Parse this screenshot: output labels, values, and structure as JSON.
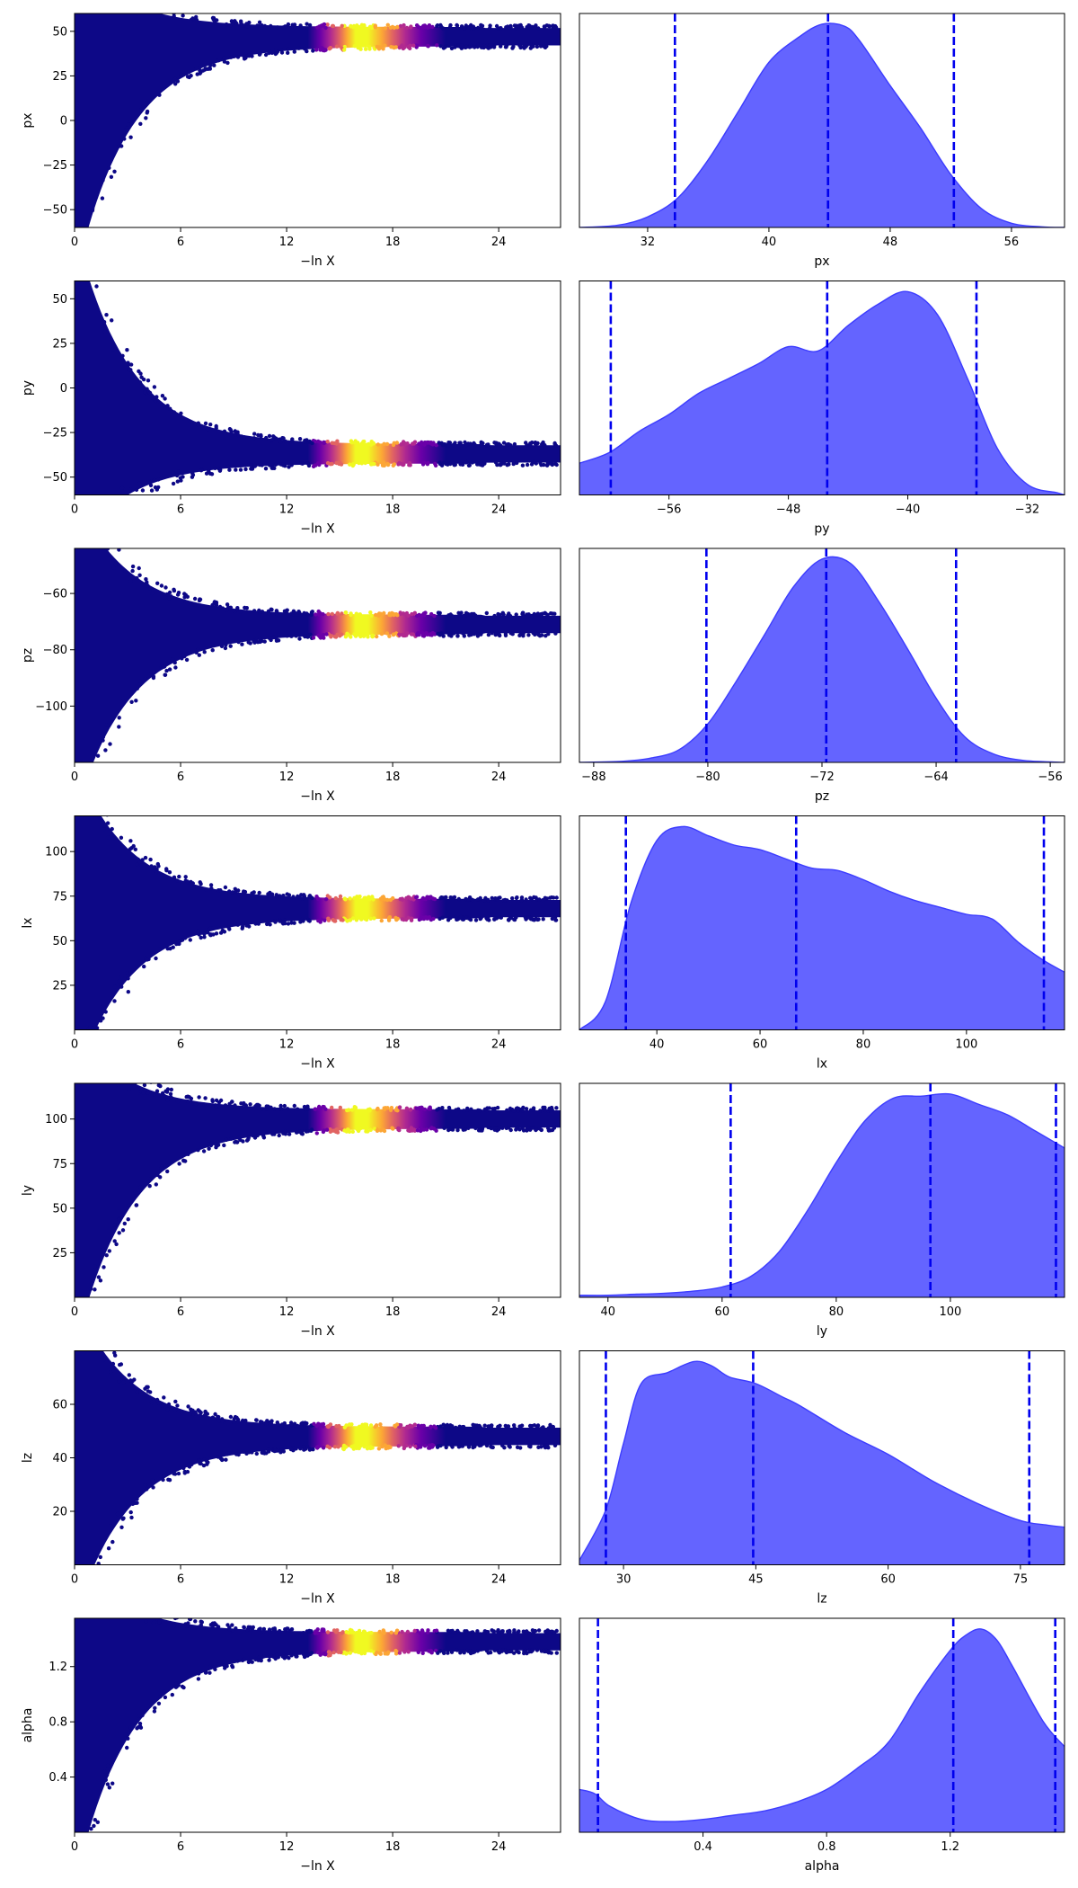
{
  "chart_data": {
    "type": "trace_plot_grid",
    "colors": {
      "kde_fill": "#6464ff",
      "kde_line": "#3c3cff",
      "quantile_line": "#0000ee",
      "colormap": [
        "#0d0887",
        "#6a00a8",
        "#b12a90",
        "#e16462",
        "#fca636",
        "#f0f921"
      ]
    },
    "trace_xlabel": "−ln X",
    "trace_xlim": [
      0,
      27.5
    ],
    "trace_xticks": [
      0,
      6,
      12,
      18,
      24
    ],
    "trace_xtick_labels": [
      "0",
      "6",
      "12",
      "18",
      "24"
    ],
    "rows": [
      {
        "param": "px",
        "trace_ylim": [
          -60,
          60
        ],
        "trace_yticks": [
          -50,
          -25,
          0,
          25,
          50
        ],
        "trace_ytick_labels": [
          "−50",
          "−25",
          "0",
          "25",
          "50"
        ],
        "trace_converged": 47,
        "trace_spread_start": 60,
        "trace_bulk_lower": -60,
        "kde_xlim": [
          27.5,
          59.5
        ],
        "kde_xticks": [
          32,
          40,
          48,
          56
        ],
        "kde_xtick_labels": [
          "32",
          "40",
          "48",
          "56"
        ],
        "kde_x": [
          27.5,
          30,
          32,
          34,
          36,
          38,
          40,
          42,
          43.5,
          45,
          46,
          48,
          50,
          52,
          54,
          56,
          58,
          59.5
        ],
        "kde_y": [
          0,
          0.01,
          0.05,
          0.14,
          0.32,
          0.55,
          0.78,
          0.9,
          0.96,
          0.95,
          0.88,
          0.67,
          0.47,
          0.25,
          0.09,
          0.02,
          0.003,
          0
        ],
        "quantiles": [
          33.8,
          43.9,
          52.2
        ]
      },
      {
        "param": "py",
        "trace_ylim": [
          -60,
          60
        ],
        "trace_yticks": [
          -50,
          -25,
          0,
          25,
          50
        ],
        "trace_ytick_labels": [
          "−50",
          "−25",
          "0",
          "25",
          "50"
        ],
        "trace_converged": -37,
        "trace_spread_start": 60,
        "trace_bulk_lower": -60,
        "kde_xlim": [
          -62,
          -29.5
        ],
        "kde_xticks": [
          -56,
          -48,
          -40,
          -32
        ],
        "kde_xtick_labels": [
          "−56",
          "−48",
          "−40",
          "−32"
        ],
        "kde_x": [
          -62,
          -60,
          -58,
          -56,
          -54,
          -52,
          -50,
          -48,
          -46,
          -44,
          -42,
          -40,
          -38,
          -36,
          -34,
          -32,
          -30,
          -29.5
        ],
        "kde_y": [
          0.15,
          0.2,
          0.3,
          0.38,
          0.48,
          0.55,
          0.62,
          0.7,
          0.68,
          0.8,
          0.9,
          0.96,
          0.85,
          0.55,
          0.22,
          0.05,
          0.01,
          0
        ],
        "quantiles": [
          -59.9,
          -45.4,
          -35.4
        ]
      },
      {
        "param": "pz",
        "trace_ylim": [
          -120,
          -44
        ],
        "trace_yticks": [
          -100,
          -80,
          -60
        ],
        "trace_ytick_labels": [
          "−100",
          "−80",
          "−60"
        ],
        "trace_converged": -71,
        "trace_spread_start": -44,
        "trace_bulk_lower": -120,
        "kde_xlim": [
          -89,
          -55
        ],
        "kde_xticks": [
          -88,
          -80,
          -72,
          -64,
          -56
        ],
        "kde_xtick_labels": [
          "−88",
          "−80",
          "−72",
          "−64",
          "−56"
        ],
        "kde_x": [
          -89,
          -86,
          -84,
          -82,
          -80,
          -78,
          -76,
          -74,
          -72,
          -70,
          -68,
          -66,
          -64,
          -62,
          -60,
          -58,
          -56,
          -55
        ],
        "kde_y": [
          0,
          0.005,
          0.02,
          0.06,
          0.18,
          0.38,
          0.6,
          0.82,
          0.95,
          0.93,
          0.75,
          0.53,
          0.3,
          0.12,
          0.04,
          0.01,
          0.002,
          0
        ],
        "quantiles": [
          -80.1,
          -71.7,
          -62.6
        ]
      },
      {
        "param": "lx",
        "trace_ylim": [
          0,
          120
        ],
        "trace_yticks": [
          25,
          50,
          75,
          100
        ],
        "trace_ytick_labels": [
          "25",
          "50",
          "75",
          "100"
        ],
        "trace_converged": 68,
        "trace_spread_start": 0,
        "trace_bulk_lower": 0,
        "kde_xlim": [
          25,
          119
        ],
        "kde_xticks": [
          40,
          60,
          80,
          100
        ],
        "kde_xtick_labels": [
          "40",
          "60",
          "80",
          "100"
        ],
        "kde_x": [
          25,
          30,
          35,
          40,
          45,
          50,
          55,
          60,
          65,
          70,
          75,
          80,
          85,
          90,
          95,
          100,
          105,
          110,
          115,
          119
        ],
        "kde_y": [
          0,
          0.12,
          0.55,
          0.82,
          0.88,
          0.84,
          0.8,
          0.78,
          0.74,
          0.7,
          0.69,
          0.65,
          0.6,
          0.56,
          0.53,
          0.5,
          0.48,
          0.38,
          0.3,
          0.25
        ],
        "quantiles": [
          34,
          67,
          115
        ]
      },
      {
        "param": "ly",
        "trace_ylim": [
          0,
          120
        ],
        "trace_yticks": [
          25,
          50,
          75,
          100
        ],
        "trace_ytick_labels": [
          "25",
          "50",
          "75",
          "100"
        ],
        "trace_converged": 100,
        "trace_spread_start": 0,
        "trace_bulk_lower": 0,
        "kde_xlim": [
          35,
          120
        ],
        "kde_xticks": [
          40,
          60,
          80,
          100
        ],
        "kde_xtick_labels": [
          "40",
          "60",
          "80",
          "100"
        ],
        "kde_x": [
          35,
          40,
          45,
          50,
          55,
          60,
          65,
          70,
          75,
          80,
          85,
          90,
          95,
          100,
          105,
          110,
          115,
          120
        ],
        "kde_y": [
          0.01,
          0.01,
          0.015,
          0.02,
          0.03,
          0.05,
          0.1,
          0.22,
          0.42,
          0.65,
          0.85,
          0.96,
          0.97,
          0.98,
          0.93,
          0.88,
          0.8,
          0.72
        ],
        "quantiles": [
          61.5,
          96.5,
          118.5
        ]
      },
      {
        "param": "lz",
        "trace_ylim": [
          0,
          80
        ],
        "trace_yticks": [
          20,
          40,
          60
        ],
        "trace_ytick_labels": [
          "20",
          "40",
          "60"
        ],
        "trace_converged": 48,
        "trace_spread_start": 0,
        "trace_bulk_lower": 0,
        "kde_xlim": [
          25,
          80
        ],
        "kde_xticks": [
          30,
          45,
          60,
          75
        ],
        "kde_xtick_labels": [
          "30",
          "45",
          "60",
          "75"
        ],
        "kde_x": [
          25,
          28,
          30,
          32,
          35,
          38,
          40,
          42,
          45,
          48,
          50,
          55,
          60,
          65,
          70,
          75,
          78,
          80
        ],
        "kde_y": [
          0.02,
          0.25,
          0.55,
          0.82,
          0.87,
          0.92,
          0.9,
          0.85,
          0.82,
          0.76,
          0.72,
          0.6,
          0.5,
          0.38,
          0.28,
          0.2,
          0.18,
          0.17
        ],
        "quantiles": [
          28,
          44.7,
          76
        ]
      },
      {
        "param": "alpha",
        "trace_ylim": [
          0,
          1.55
        ],
        "trace_yticks": [
          0.4,
          0.8,
          1.2
        ],
        "trace_ytick_labels": [
          "0.4",
          "0.8",
          "1.2"
        ],
        "trace_converged": 1.38,
        "trace_spread_start": 0,
        "trace_bulk_lower": 0,
        "kde_xlim": [
          0,
          1.57
        ],
        "kde_xticks": [
          0.4,
          0.8,
          1.2
        ],
        "kde_xtick_labels": [
          "0.4",
          "0.8",
          "1.2"
        ],
        "kde_x": [
          0,
          0.05,
          0.1,
          0.2,
          0.3,
          0.4,
          0.5,
          0.6,
          0.7,
          0.8,
          0.9,
          1.0,
          1.1,
          1.2,
          1.25,
          1.3,
          1.35,
          1.4,
          1.5,
          1.57
        ],
        "kde_y": [
          0.2,
          0.18,
          0.12,
          0.06,
          0.05,
          0.06,
          0.08,
          0.1,
          0.14,
          0.2,
          0.3,
          0.42,
          0.65,
          0.85,
          0.92,
          0.95,
          0.9,
          0.78,
          0.52,
          0.4
        ],
        "quantiles": [
          0.06,
          1.21,
          1.54
        ]
      }
    ]
  }
}
